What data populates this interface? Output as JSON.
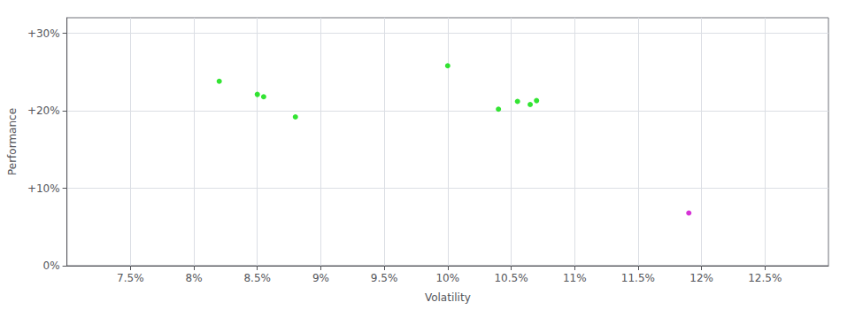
{
  "chart_data": {
    "type": "scatter",
    "xlabel": "Volatility",
    "ylabel": "Performance",
    "xlim": [
      0.07,
      0.13
    ],
    "ylim": [
      0.0,
      0.32
    ],
    "xticks": [
      {
        "value": 0.075,
        "label": "7.5%"
      },
      {
        "value": 0.08,
        "label": "8%"
      },
      {
        "value": 0.085,
        "label": "8.5%"
      },
      {
        "value": 0.09,
        "label": "9%"
      },
      {
        "value": 0.095,
        "label": "9.5%"
      },
      {
        "value": 0.1,
        "label": "10%"
      },
      {
        "value": 0.105,
        "label": "10.5%"
      },
      {
        "value": 0.11,
        "label": "11%"
      },
      {
        "value": 0.115,
        "label": "11.5%"
      },
      {
        "value": 0.12,
        "label": "12%"
      },
      {
        "value": 0.125,
        "label": "12.5%"
      }
    ],
    "yticks": [
      {
        "value": 0.0,
        "label": "0%"
      },
      {
        "value": 0.1,
        "label": "+10%"
      },
      {
        "value": 0.2,
        "label": "+20%"
      },
      {
        "value": 0.3,
        "label": "+30%"
      }
    ],
    "grid": true,
    "series": [
      {
        "color": "#00dd00",
        "x": [
          0.082,
          0.085,
          0.0855,
          0.088,
          0.1,
          0.104,
          0.1055,
          0.1065,
          0.107
        ],
        "values": [
          0.238,
          0.221,
          0.218,
          0.192,
          0.258,
          0.202,
          0.212,
          0.208,
          0.213
        ]
      },
      {
        "color": "#cc00cc",
        "x": [
          0.119
        ],
        "values": [
          0.068
        ]
      }
    ]
  }
}
